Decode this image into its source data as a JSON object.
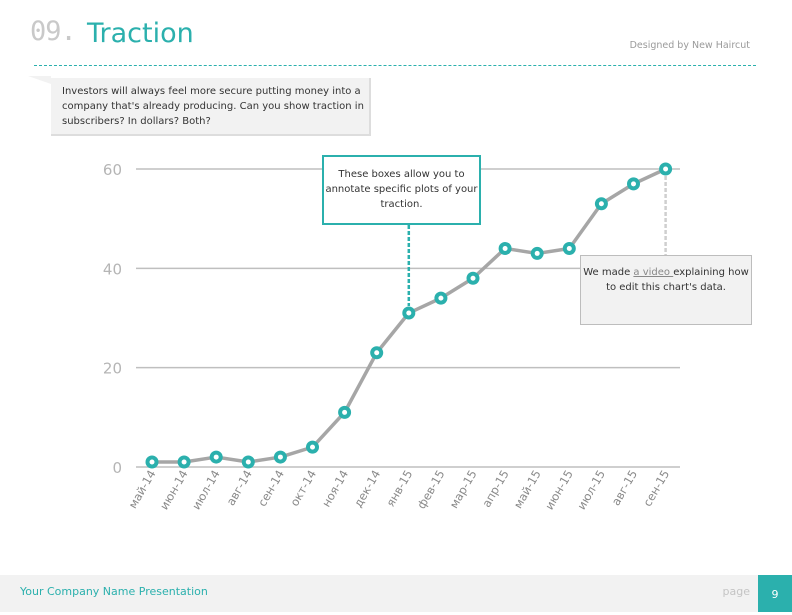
{
  "header": {
    "number": "09.",
    "title": "Traction",
    "credit": "Designed by New Haircut"
  },
  "intro": {
    "text": "Investors will always feel more secure putting money into a company that's already producing. Can you show traction in subscribers? In dollars? Both?"
  },
  "annotations": {
    "box1": "These boxes allow you to annotate specific plots of your traction.",
    "box2_pre": "We made ",
    "box2_link": "a video ",
    "box2_post": "explaining how to edit this chart's data."
  },
  "chart_data": {
    "type": "line",
    "categories": [
      "май-14",
      "июн-14",
      "июл-14",
      "авг-14",
      "сен-14",
      "окт-14",
      "ноя-14",
      "дек-14",
      "янв-15",
      "фев-15",
      "мар-15",
      "апр-15",
      "май-15",
      "июн-15",
      "июл-15",
      "авг-15",
      "сен-15"
    ],
    "values": [
      1,
      1,
      2,
      1,
      2,
      4,
      11,
      23,
      31,
      34,
      38,
      44,
      43,
      44,
      53,
      57,
      60
    ],
    "yticks": [
      0,
      20,
      40,
      60
    ],
    "ylim": [
      0,
      60
    ],
    "title": "",
    "xlabel": "",
    "ylabel": ""
  },
  "colors": {
    "accent": "#2bb0ad",
    "line": "#a6a6a6",
    "grid": "#bfbfbf"
  },
  "footer": {
    "company": "Your Company Name Presentation",
    "page_label": "page",
    "page_number": "9"
  }
}
